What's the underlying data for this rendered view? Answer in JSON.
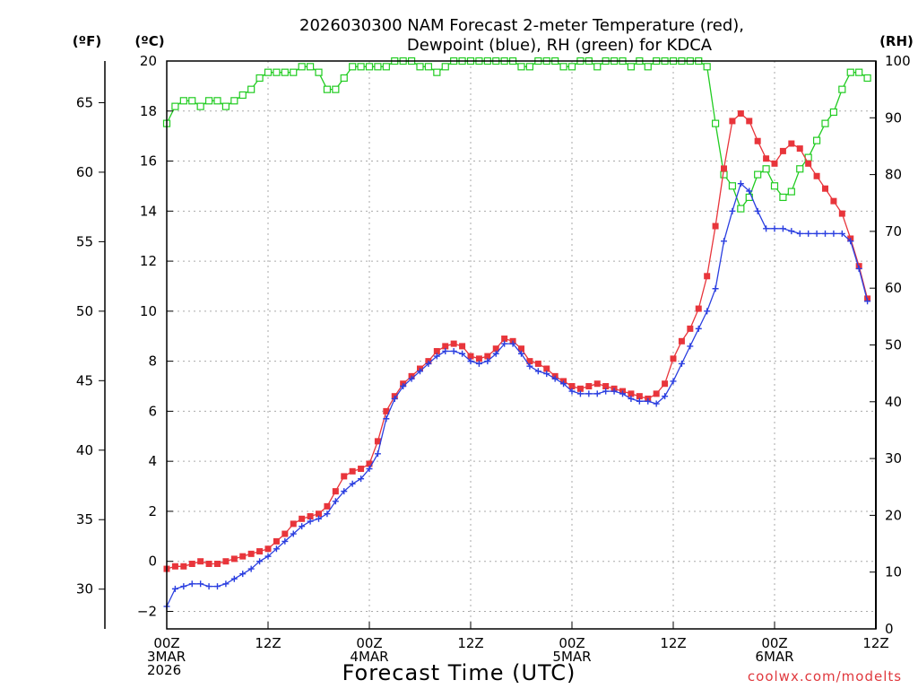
{
  "chart_data": {
    "type": "line",
    "title_lines": [
      "2026030300 NAM Forecast 2-meter Temperature (red),",
      "Dewpoint (blue), RH (green) for KDCA"
    ],
    "xlabel": "Forecast Time (UTC)",
    "credit": "coolwx.com/modelts",
    "units": {
      "fahrenheit": "(ºF)",
      "celsius": "(ºC)",
      "rh": "(RH)"
    },
    "x_unit": "forecast hour",
    "xlim": [
      0,
      84
    ],
    "x_ticks": [
      {
        "hour": 0,
        "lines": [
          "00Z",
          "3MAR",
          "2026"
        ]
      },
      {
        "hour": 12,
        "lines": [
          "12Z"
        ]
      },
      {
        "hour": 24,
        "lines": [
          "00Z",
          "4MAR"
        ]
      },
      {
        "hour": 36,
        "lines": [
          "12Z"
        ]
      },
      {
        "hour": 48,
        "lines": [
          "00Z",
          "5MAR"
        ]
      },
      {
        "hour": 60,
        "lines": [
          "12Z"
        ]
      },
      {
        "hour": 72,
        "lines": [
          "00Z",
          "6MAR"
        ]
      },
      {
        "hour": 84,
        "lines": [
          "12Z"
        ]
      }
    ],
    "ylim_celsius": [
      -2.7,
      20
    ],
    "y_ticks_celsius": [
      "−2",
      "0",
      "2",
      "4",
      "6",
      "8",
      "10",
      "12",
      "14",
      "16",
      "18",
      "20"
    ],
    "y_ticks_fahrenheit": [
      "30",
      "35",
      "40",
      "45",
      "50",
      "55",
      "60",
      "65"
    ],
    "ylim_rh": [
      0,
      100
    ],
    "y_ticks_rh": [
      "0",
      "10",
      "20",
      "30",
      "40",
      "50",
      "60",
      "70",
      "80",
      "90",
      "100"
    ],
    "grid": true,
    "series": [
      {
        "name": "Temperature",
        "color": "#e8353b",
        "marker": "filled-square",
        "axis": "celsius",
        "values": [
          -0.3,
          -0.2,
          -0.2,
          -0.1,
          0.0,
          -0.1,
          -0.1,
          0.0,
          0.1,
          0.2,
          0.3,
          0.4,
          0.5,
          0.8,
          1.1,
          1.5,
          1.7,
          1.8,
          1.9,
          2.2,
          2.8,
          3.4,
          3.6,
          3.7,
          3.9,
          4.8,
          6.0,
          6.6,
          7.1,
          7.4,
          7.7,
          8.0,
          8.4,
          8.6,
          8.7,
          8.6,
          8.2,
          8.1,
          8.2,
          8.5,
          8.9,
          8.8,
          8.5,
          8.0,
          7.9,
          7.7,
          7.4,
          7.2,
          7.0,
          6.9,
          7.0,
          7.1,
          7.0,
          6.9,
          6.8,
          6.7,
          6.6,
          6.5,
          6.7,
          7.1,
          8.1,
          8.8,
          9.3,
          10.1,
          11.4,
          13.4,
          15.7,
          17.6,
          17.9,
          17.6,
          16.8,
          16.1,
          15.9,
          16.4,
          16.7,
          16.5,
          15.9,
          15.4,
          14.9,
          14.4,
          13.9,
          12.9,
          11.8,
          10.5
        ]
      },
      {
        "name": "Dewpoint",
        "color": "#2b3fe0",
        "marker": "plus",
        "axis": "celsius",
        "values": [
          -1.8,
          -1.1,
          -1.0,
          -0.9,
          -0.9,
          -1.0,
          -1.0,
          -0.9,
          -0.7,
          -0.5,
          -0.3,
          0.0,
          0.2,
          0.5,
          0.8,
          1.1,
          1.4,
          1.6,
          1.7,
          1.9,
          2.4,
          2.8,
          3.1,
          3.3,
          3.7,
          4.3,
          5.7,
          6.5,
          7.0,
          7.3,
          7.6,
          7.9,
          8.2,
          8.4,
          8.4,
          8.3,
          8.0,
          7.9,
          8.0,
          8.3,
          8.7,
          8.7,
          8.3,
          7.8,
          7.6,
          7.5,
          7.3,
          7.1,
          6.8,
          6.7,
          6.7,
          6.7,
          6.8,
          6.8,
          6.7,
          6.5,
          6.4,
          6.4,
          6.3,
          6.6,
          7.2,
          7.9,
          8.6,
          9.3,
          10.0,
          10.9,
          12.8,
          14.0,
          15.1,
          14.8,
          14.0,
          13.3,
          13.3,
          13.3,
          13.2,
          13.1,
          13.1,
          13.1,
          13.1,
          13.1,
          13.1,
          12.8,
          11.7,
          10.4
        ]
      },
      {
        "name": "RH",
        "color": "#22cc22",
        "marker": "open-square",
        "axis": "rh",
        "values": [
          89,
          92,
          93,
          93,
          92,
          93,
          93,
          92,
          93,
          94,
          95,
          97,
          98,
          98,
          98,
          98,
          99,
          99,
          98,
          95,
          95,
          97,
          99,
          99,
          99,
          99,
          99,
          100,
          100,
          100,
          99,
          99,
          98,
          99,
          100,
          100,
          101,
          101,
          101,
          100,
          100,
          100,
          99,
          99,
          100,
          100,
          100,
          99,
          99,
          100,
          100,
          99,
          100,
          100,
          100,
          99,
          100,
          99,
          100,
          100,
          100,
          101,
          100,
          100,
          99,
          89,
          80,
          78,
          74,
          76,
          80,
          81,
          78,
          76,
          77,
          81,
          83,
          86,
          89,
          91,
          95,
          98,
          98,
          97
        ]
      }
    ]
  }
}
